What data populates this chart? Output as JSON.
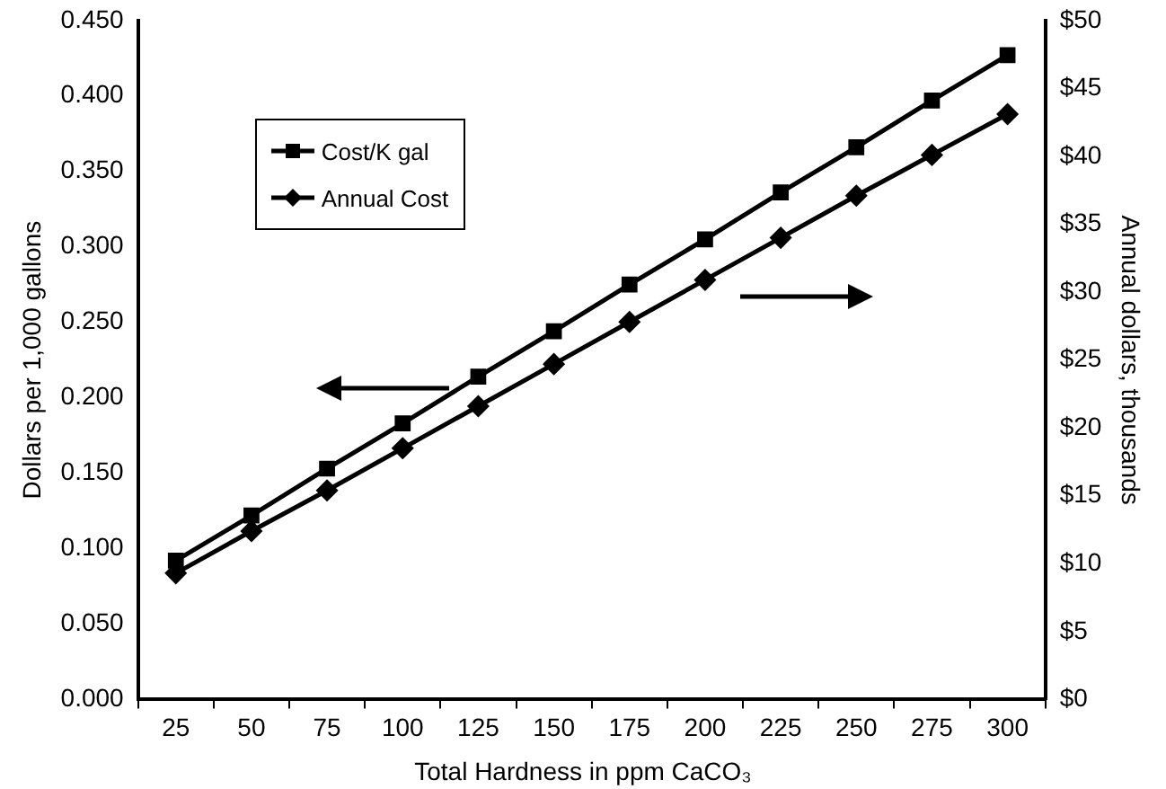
{
  "chart_data": {
    "type": "line",
    "xlabel": "Total Hardness in ppm CaCO₃",
    "ylabel": "Dollars per 1,000 gallons",
    "y2label": "Annual dollars, thousands",
    "categories": [
      "25",
      "50",
      "75",
      "100",
      "125",
      "150",
      "175",
      "200",
      "225",
      "250",
      "275",
      "300"
    ],
    "series": [
      {
        "name": "Cost/K gal",
        "color": "#000000",
        "marker": "square",
        "values": [
          0.092,
          0.122,
          0.153,
          0.183,
          0.214,
          0.244,
          0.275,
          0.305,
          0.336,
          0.366,
          0.397,
          0.427
        ]
      },
      {
        "name": "Annual Cost",
        "color": "#000000",
        "marker": "diamond",
        "axis": "y2",
        "values": [
          9.3,
          12.4,
          15.4,
          18.5,
          21.6,
          24.7,
          27.8,
          30.9,
          34.0,
          37.1,
          40.1,
          43.1
        ]
      }
    ],
    "ylim": [
      0,
      0.45
    ],
    "yticks": [
      {
        "value": 0,
        "label": "0.000"
      },
      {
        "value": 0.05,
        "label": "0.050"
      },
      {
        "value": 0.1,
        "label": "0.100"
      },
      {
        "value": 0.15,
        "label": "0.150"
      },
      {
        "value": 0.2,
        "label": "0.200"
      },
      {
        "value": 0.25,
        "label": "0.250"
      },
      {
        "value": 0.3,
        "label": "0.300"
      },
      {
        "value": 0.35,
        "label": "0.350"
      },
      {
        "value": 0.4,
        "label": "0.400"
      },
      {
        "value": 0.45,
        "label": "0.450"
      }
    ],
    "y2lim": [
      0,
      50
    ],
    "y2ticks": [
      {
        "value": 0,
        "label": "$0"
      },
      {
        "value": 5,
        "label": "$5"
      },
      {
        "value": 10,
        "label": "$10"
      },
      {
        "value": 15,
        "label": "$15"
      },
      {
        "value": 20,
        "label": "$20"
      },
      {
        "value": 25,
        "label": "$25"
      },
      {
        "value": 30,
        "label": "$30"
      },
      {
        "value": 35,
        "label": "$35"
      },
      {
        "value": 40,
        "label": "$40"
      },
      {
        "value": 45,
        "label": "$45"
      },
      {
        "value": 50,
        "label": "$50"
      }
    ],
    "grid": false,
    "legend": "top left",
    "line_style": "solid"
  }
}
